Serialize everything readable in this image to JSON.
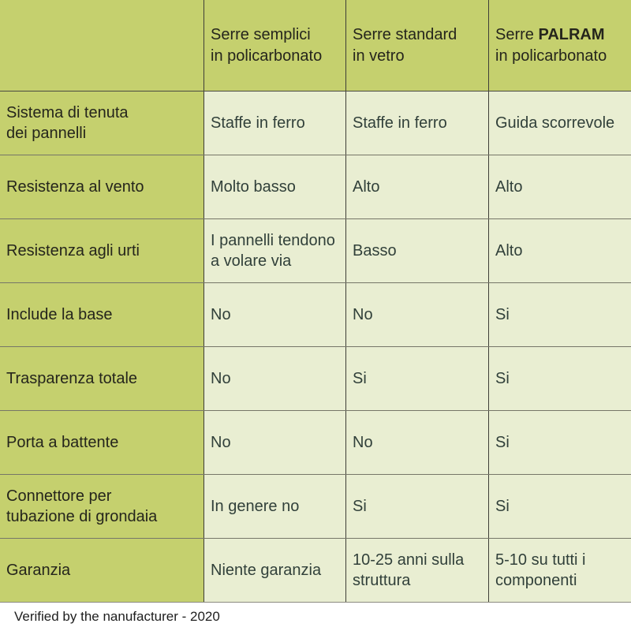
{
  "table": {
    "corner": "",
    "columns": [
      {
        "title": "Serre semplici\nin policarbonato"
      },
      {
        "title": "Serre standard\nin vetro"
      },
      {
        "title_prefix": "Serre ",
        "title_brand": "PALRAM",
        "title_line2": "in policarbonato"
      }
    ],
    "rows": [
      {
        "label": "Sistema di tenuta\ndei pannelli",
        "cells": [
          "Staffe in ferro",
          "Staffe in ferro",
          "Guida scorrevole"
        ]
      },
      {
        "label": "Resistenza al vento",
        "cells": [
          "Molto basso",
          "Alto",
          "Alto"
        ]
      },
      {
        "label": "Resistenza agli urti",
        "cells": [
          "I pannelli tendono\na volare via",
          "Basso",
          "Alto"
        ]
      },
      {
        "label": "Include la base",
        "cells": [
          "No",
          "No",
          "Si"
        ]
      },
      {
        "label": "Trasparenza totale",
        "cells": [
          "No",
          "Si",
          "Si"
        ]
      },
      {
        "label": "Porta a battente",
        "cells": [
          "No",
          "No",
          "Si"
        ]
      },
      {
        "label": "Connettore per\ntubazione di grondaia",
        "cells": [
          "In genere no",
          "Si",
          "Si"
        ]
      },
      {
        "label": "Garanzia",
        "cells": [
          "Niente garanzia",
          "10-25 anni sulla\nstruttura",
          "5-10 su tutti i\ncomponenti"
        ]
      }
    ]
  },
  "footer": {
    "note": "Verified by the nanufacturer - 2020"
  },
  "colors": {
    "header_bg": "#c5d06e",
    "cell_bg": "#e9eed2",
    "vertical_border": "#3e3e37",
    "horizontal_border": "#767668",
    "bottom_border": "#8b8b7f",
    "label_text": "#25251c",
    "cell_text": "#31403a"
  },
  "chart_data": {
    "type": "table",
    "title": "",
    "columns": [
      "",
      "Serre semplici in policarbonato",
      "Serre standard in vetro",
      "Serre PALRAM in policarbonato"
    ],
    "rows": [
      [
        "Sistema di tenuta dei pannelli",
        "Staffe in ferro",
        "Staffe in ferro",
        "Guida scorrevole"
      ],
      [
        "Resistenza al vento",
        "Molto basso",
        "Alto",
        "Alto"
      ],
      [
        "Resistenza agli urti",
        "I pannelli tendono a volare via",
        "Basso",
        "Alto"
      ],
      [
        "Include la base",
        "No",
        "No",
        "Si"
      ],
      [
        "Trasparenza totale",
        "No",
        "Si",
        "Si"
      ],
      [
        "Porta a battente",
        "No",
        "No",
        "Si"
      ],
      [
        "Connettore per tubazione di grondaia",
        "In genere no",
        "Si",
        "Si"
      ],
      [
        "Garanzia",
        "Niente garanzia",
        "10-25 anni sulla struttura",
        "5-10 su tutti i componenti"
      ]
    ],
    "footnote": "Verified by the nanufacturer - 2020",
    "layout": {
      "header_row": true,
      "header_column": true,
      "grid": "on"
    }
  }
}
